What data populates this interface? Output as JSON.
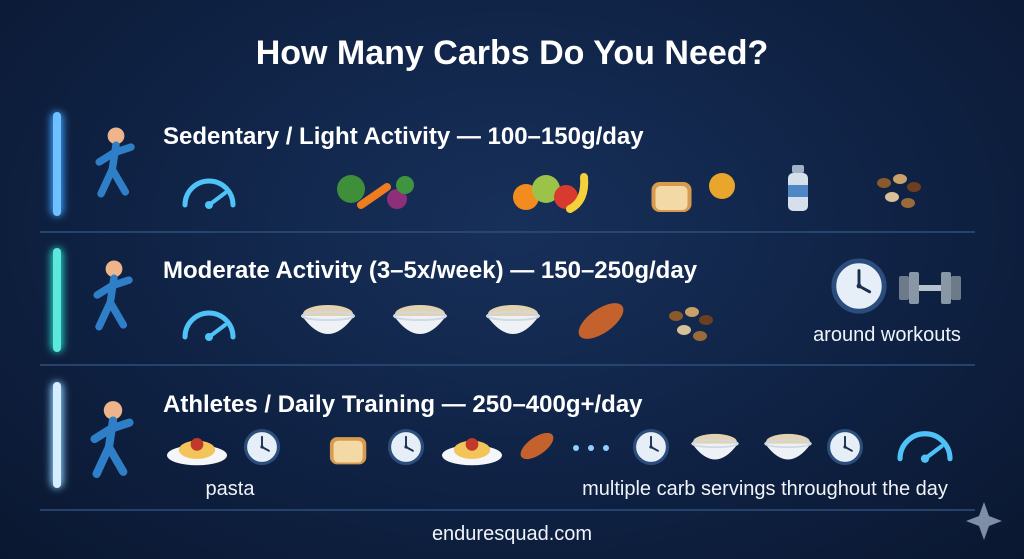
{
  "title": "How Many Carbs Do You Need?",
  "tiers": [
    {
      "heading": "Sedentary / Light Activity — 100–150g/day"
    },
    {
      "heading": "Moderate Activity (3–5x/week) — 150–250g/day",
      "note": "around workouts"
    },
    {
      "heading": "Athletes / Daily Training — 250–400g+/day",
      "notes": [
        "pasta",
        "multiple carb servings throughout the day"
      ]
    }
  ],
  "footer": "enduresquad.com"
}
